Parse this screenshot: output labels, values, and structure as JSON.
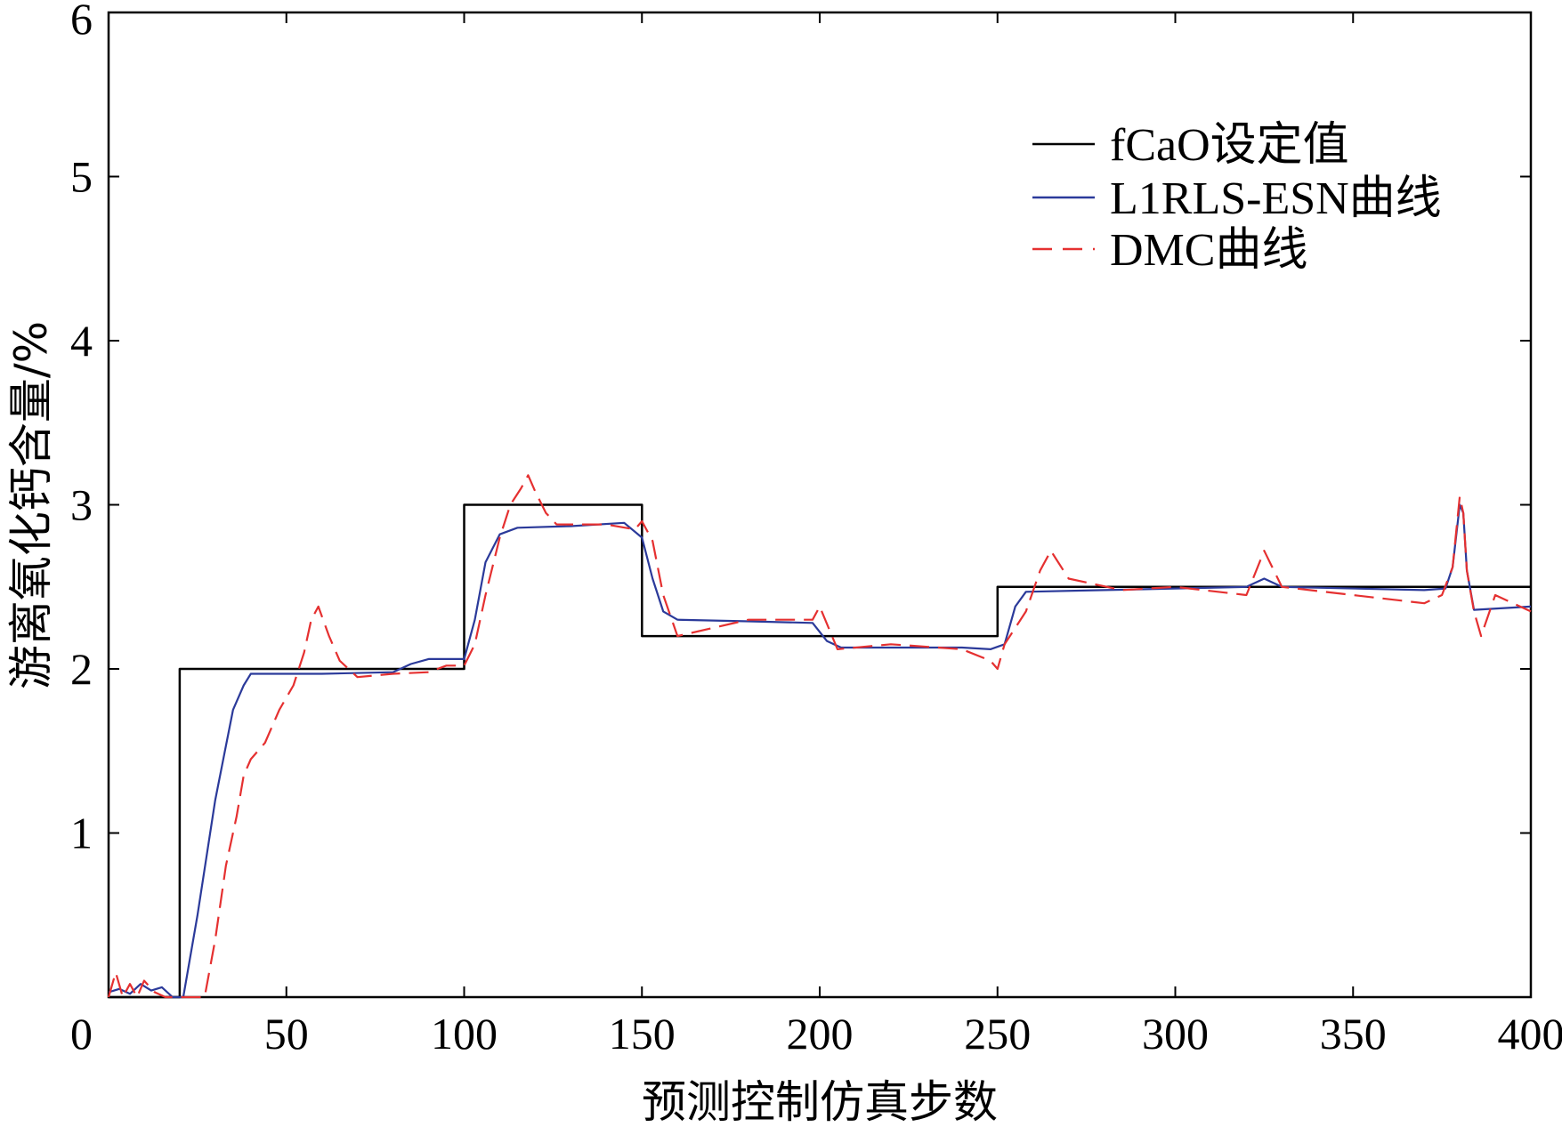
{
  "chart_data": {
    "type": "line",
    "title": "",
    "xlabel": "预测控制仿真步数",
    "ylabel": "游离氧化钙含量/%",
    "xlim": [
      0,
      400
    ],
    "ylim": [
      0,
      6
    ],
    "x_ticks": [
      50,
      100,
      150,
      200,
      250,
      300,
      350,
      400
    ],
    "x_tick_labels": [
      "50",
      "100",
      "150",
      "200",
      "250",
      "300",
      "350",
      "400"
    ],
    "y_ticks": [
      0,
      1,
      2,
      3,
      4,
      5,
      6
    ],
    "y_tick_labels": [
      "0",
      "1",
      "2",
      "3",
      "4",
      "5",
      "6"
    ],
    "grid": false,
    "legend_position": "top-right",
    "series": [
      {
        "name": "fCaO设定值",
        "color": "#000000",
        "style": "solid",
        "x": [
          0,
          20,
          20,
          100,
          100,
          150,
          150,
          250,
          250,
          400
        ],
        "y": [
          0,
          0,
          2,
          2,
          3,
          3,
          2.2,
          2.2,
          2.5,
          2.5
        ]
      },
      {
        "name": "L1RLS-ESN曲线",
        "color": "#2b3a9a",
        "style": "solid",
        "x": [
          0,
          3,
          6,
          9,
          12,
          15,
          18,
          21,
          25,
          30,
          35,
          37,
          38,
          40,
          60,
          80,
          85,
          90,
          100,
          103,
          106,
          110,
          115,
          130,
          145,
          150,
          153,
          156,
          160,
          180,
          198,
          202,
          206,
          220,
          240,
          248,
          252,
          255,
          258,
          280,
          320,
          325,
          330,
          370,
          376,
          378,
          380,
          381,
          382,
          384,
          400
        ],
        "y": [
          0.03,
          0.05,
          0.02,
          0.08,
          0.04,
          0.06,
          0.0,
          0.0,
          0.5,
          1.2,
          1.75,
          1.85,
          1.9,
          1.97,
          1.97,
          1.98,
          2.03,
          2.06,
          2.06,
          2.3,
          2.65,
          2.82,
          2.86,
          2.87,
          2.89,
          2.8,
          2.55,
          2.35,
          2.3,
          2.29,
          2.28,
          2.17,
          2.13,
          2.13,
          2.13,
          2.12,
          2.15,
          2.38,
          2.47,
          2.48,
          2.5,
          2.55,
          2.5,
          2.48,
          2.49,
          2.62,
          3.0,
          2.95,
          2.6,
          2.36,
          2.38
        ]
      },
      {
        "name": "DMC曲线",
        "color": "#e53030",
        "style": "dashed",
        "x": [
          0,
          2,
          4,
          6,
          8,
          10,
          13,
          16,
          20,
          24,
          27,
          30,
          33,
          36,
          38,
          40,
          44,
          48,
          52,
          55,
          57,
          59,
          62,
          65,
          70,
          80,
          90,
          95,
          100,
          103,
          106,
          110,
          113,
          116,
          118,
          120,
          123,
          126,
          130,
          140,
          148,
          150,
          153,
          156,
          160,
          170,
          180,
          198,
          200,
          205,
          220,
          240,
          248,
          250,
          252,
          255,
          258,
          262,
          265,
          270,
          285,
          300,
          320,
          325,
          330,
          350,
          370,
          375,
          378,
          380,
          381,
          382,
          384,
          386,
          390,
          395,
          400
        ],
        "y": [
          0.0,
          0.15,
          0.0,
          0.08,
          0.0,
          0.1,
          0.03,
          0.0,
          0.0,
          0.0,
          0.0,
          0.35,
          0.8,
          1.1,
          1.35,
          1.45,
          1.55,
          1.75,
          1.9,
          2.1,
          2.3,
          2.38,
          2.2,
          2.05,
          1.95,
          1.97,
          1.98,
          2.02,
          2.02,
          2.15,
          2.45,
          2.8,
          3.0,
          3.1,
          3.18,
          3.08,
          2.95,
          2.88,
          2.88,
          2.88,
          2.85,
          2.9,
          2.78,
          2.45,
          2.2,
          2.25,
          2.3,
          2.3,
          2.38,
          2.12,
          2.15,
          2.12,
          2.05,
          2.0,
          2.15,
          2.25,
          2.35,
          2.6,
          2.72,
          2.55,
          2.48,
          2.5,
          2.45,
          2.72,
          2.5,
          2.45,
          2.4,
          2.45,
          2.62,
          3.05,
          2.95,
          2.6,
          2.35,
          2.2,
          2.45,
          2.4,
          2.35
        ]
      }
    ]
  }
}
